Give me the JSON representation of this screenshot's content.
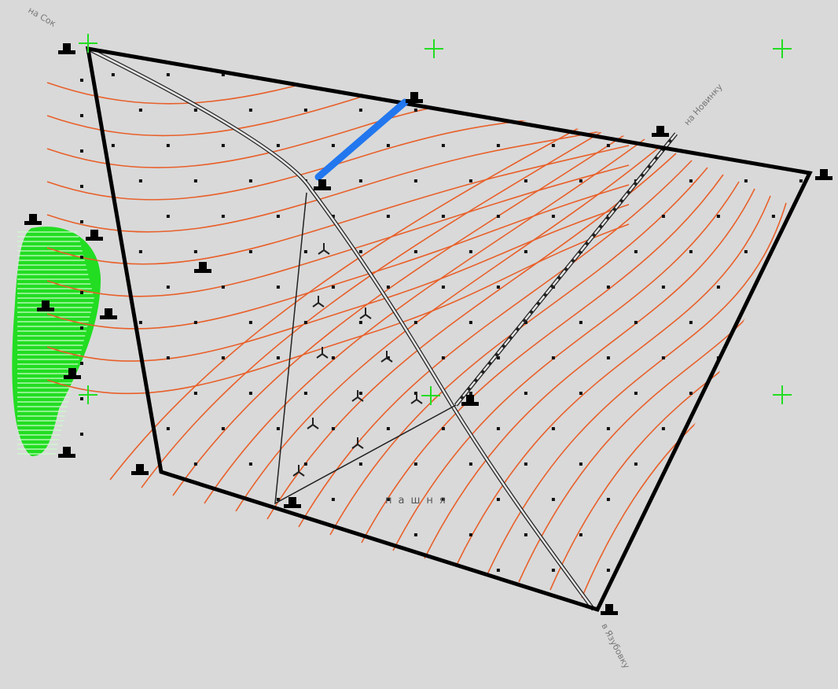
{
  "labels": {
    "top_left": "на Сок",
    "top_right": "на Новинку",
    "bottom_right": "в Язубовку",
    "field": "пашня"
  }
}
